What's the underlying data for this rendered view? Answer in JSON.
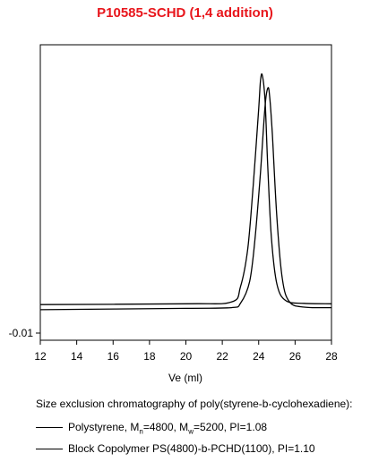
{
  "chart_data": {
    "type": "line",
    "title": "P10585-SCHD (1,4 addition)",
    "xlabel": "Ve (ml)",
    "ylabel": "",
    "xlim": [
      12,
      28
    ],
    "xticks": [
      12,
      14,
      16,
      18,
      20,
      22,
      24,
      26,
      28
    ],
    "yticks": [
      -0.01
    ],
    "ytick_labels": [
      "-0.01"
    ],
    "grid": false,
    "legend_position": "below chart",
    "caption": "Size exclusion chromatography of poly(styrene-b-cyclohexadiene):",
    "series": [
      {
        "name": "Polystyrene, Mn=4800, Mw=5200, PI=1.08",
        "name_parts": {
          "a": "Polystyrene, M",
          "b": "n",
          "c": "=4800, M",
          "d": "w",
          "e": "=5200, PI=1.08"
        },
        "color": "#000000",
        "points": [
          [
            12,
            0.08
          ],
          [
            20,
            0.083
          ],
          [
            22.5,
            0.09
          ],
          [
            23.0,
            0.15
          ],
          [
            23.4,
            0.3
          ],
          [
            23.7,
            0.55
          ],
          [
            24.0,
            0.85
          ],
          [
            24.1,
            0.96
          ],
          [
            24.2,
            0.98
          ],
          [
            24.35,
            0.88
          ],
          [
            24.5,
            0.62
          ],
          [
            24.7,
            0.34
          ],
          [
            25.0,
            0.16
          ],
          [
            25.5,
            0.095
          ],
          [
            26.5,
            0.085
          ],
          [
            28,
            0.083
          ]
        ]
      },
      {
        "name": "Block Copolymer PS(4800)-b-PCHD(1100),  PI=1.10",
        "color": "#000000",
        "points": [
          [
            12,
            0.06
          ],
          [
            20,
            0.065
          ],
          [
            22.5,
            0.068
          ],
          [
            23.0,
            0.085
          ],
          [
            23.5,
            0.17
          ],
          [
            23.8,
            0.34
          ],
          [
            24.1,
            0.6
          ],
          [
            24.35,
            0.86
          ],
          [
            24.5,
            0.93
          ],
          [
            24.6,
            0.9
          ],
          [
            24.75,
            0.75
          ],
          [
            25.0,
            0.42
          ],
          [
            25.3,
            0.18
          ],
          [
            25.7,
            0.09
          ],
          [
            26.5,
            0.07
          ],
          [
            28,
            0.068
          ]
        ]
      }
    ]
  }
}
